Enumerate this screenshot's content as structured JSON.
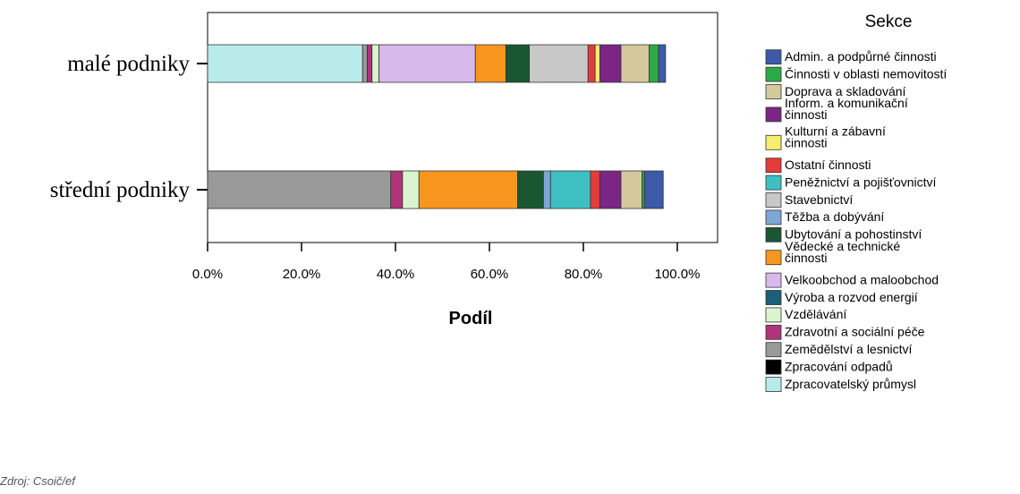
{
  "chart_data": {
    "type": "bar",
    "orientation": "horizontal",
    "stacked": true,
    "categories": [
      "malé podniky",
      "střední podniky"
    ],
    "x_ticks": [
      "0.0%",
      "20.0%",
      "40.0%",
      "60.0%",
      "80.0%",
      "100.0%"
    ],
    "xlim": [
      0,
      100
    ],
    "xlabel": "Podíl",
    "legend_title": "Sekce",
    "legend_position": "right",
    "grid": false,
    "series": [
      {
        "name": "Admin. a podpůrné činnosti",
        "color": "#3d5aa8",
        "values": [
          1.5,
          4.0
        ]
      },
      {
        "name": "Činnosti v oblasti nemovitostí",
        "color": "#2daa48",
        "values": [
          2.0,
          0.5
        ]
      },
      {
        "name": "Doprava a skladování",
        "color": "#d4c99d",
        "values": [
          6.0,
          4.5
        ]
      },
      {
        "name": "Inform. a komunikační činnosti",
        "color": "#7b2585",
        "values": [
          4.5,
          4.5
        ]
      },
      {
        "name": "Kulturní a zábavní činnosti",
        "color": "#f6ee6e",
        "values": [
          1.0,
          0.0
        ]
      },
      {
        "name": "Ostatní činnosti",
        "color": "#e43b3b",
        "values": [
          1.5,
          2.0
        ]
      },
      {
        "name": "Peněžnictví a pojišťovnictví",
        "color": "#3ec0c3",
        "values": [
          0.0,
          8.5
        ]
      },
      {
        "name": "Stavebnictví",
        "color": "#c8c8c8",
        "values": [
          12.5,
          0.0
        ]
      },
      {
        "name": "Těžba a dobývání",
        "color": "#7ea7d6",
        "values": [
          0.0,
          1.5
        ]
      },
      {
        "name": "Ubytování a pohostinství",
        "color": "#1a5632",
        "values": [
          5.0,
          5.5
        ]
      },
      {
        "name": "Vědecké a technické činnosti",
        "color": "#f7961e",
        "values": [
          6.5,
          21.0
        ]
      },
      {
        "name": "Velkoobchod a maloobchod",
        "color": "#d9b8ec",
        "values": [
          20.5,
          0.0
        ]
      },
      {
        "name": "Výroba a rozvod energií",
        "color": "#1d5e78",
        "values": [
          0.0,
          0.0
        ]
      },
      {
        "name": "Vzdělávání",
        "color": "#d9f5d0",
        "values": [
          1.5,
          3.5
        ]
      },
      {
        "name": "Zdravotní a sociální péče",
        "color": "#b0347a",
        "values": [
          1.0,
          2.5
        ]
      },
      {
        "name": "Zemědělství a lesnictví",
        "color": "#999999",
        "values": [
          1.0,
          39.0
        ]
      },
      {
        "name": "Zpracování odpadů",
        "color": "#000000",
        "values": [
          0.0,
          0.0
        ]
      },
      {
        "name": "Zpracovatelský průmysl",
        "color": "#b9ebea",
        "values": [
          33.0,
          0.0
        ]
      }
    ],
    "stack_order": [
      17,
      15,
      14,
      13,
      11,
      10,
      9,
      8,
      7,
      6,
      5,
      4,
      3,
      2,
      1,
      0
    ]
  },
  "footer": {
    "source_text": "Zdroj: Csoič/ef"
  }
}
